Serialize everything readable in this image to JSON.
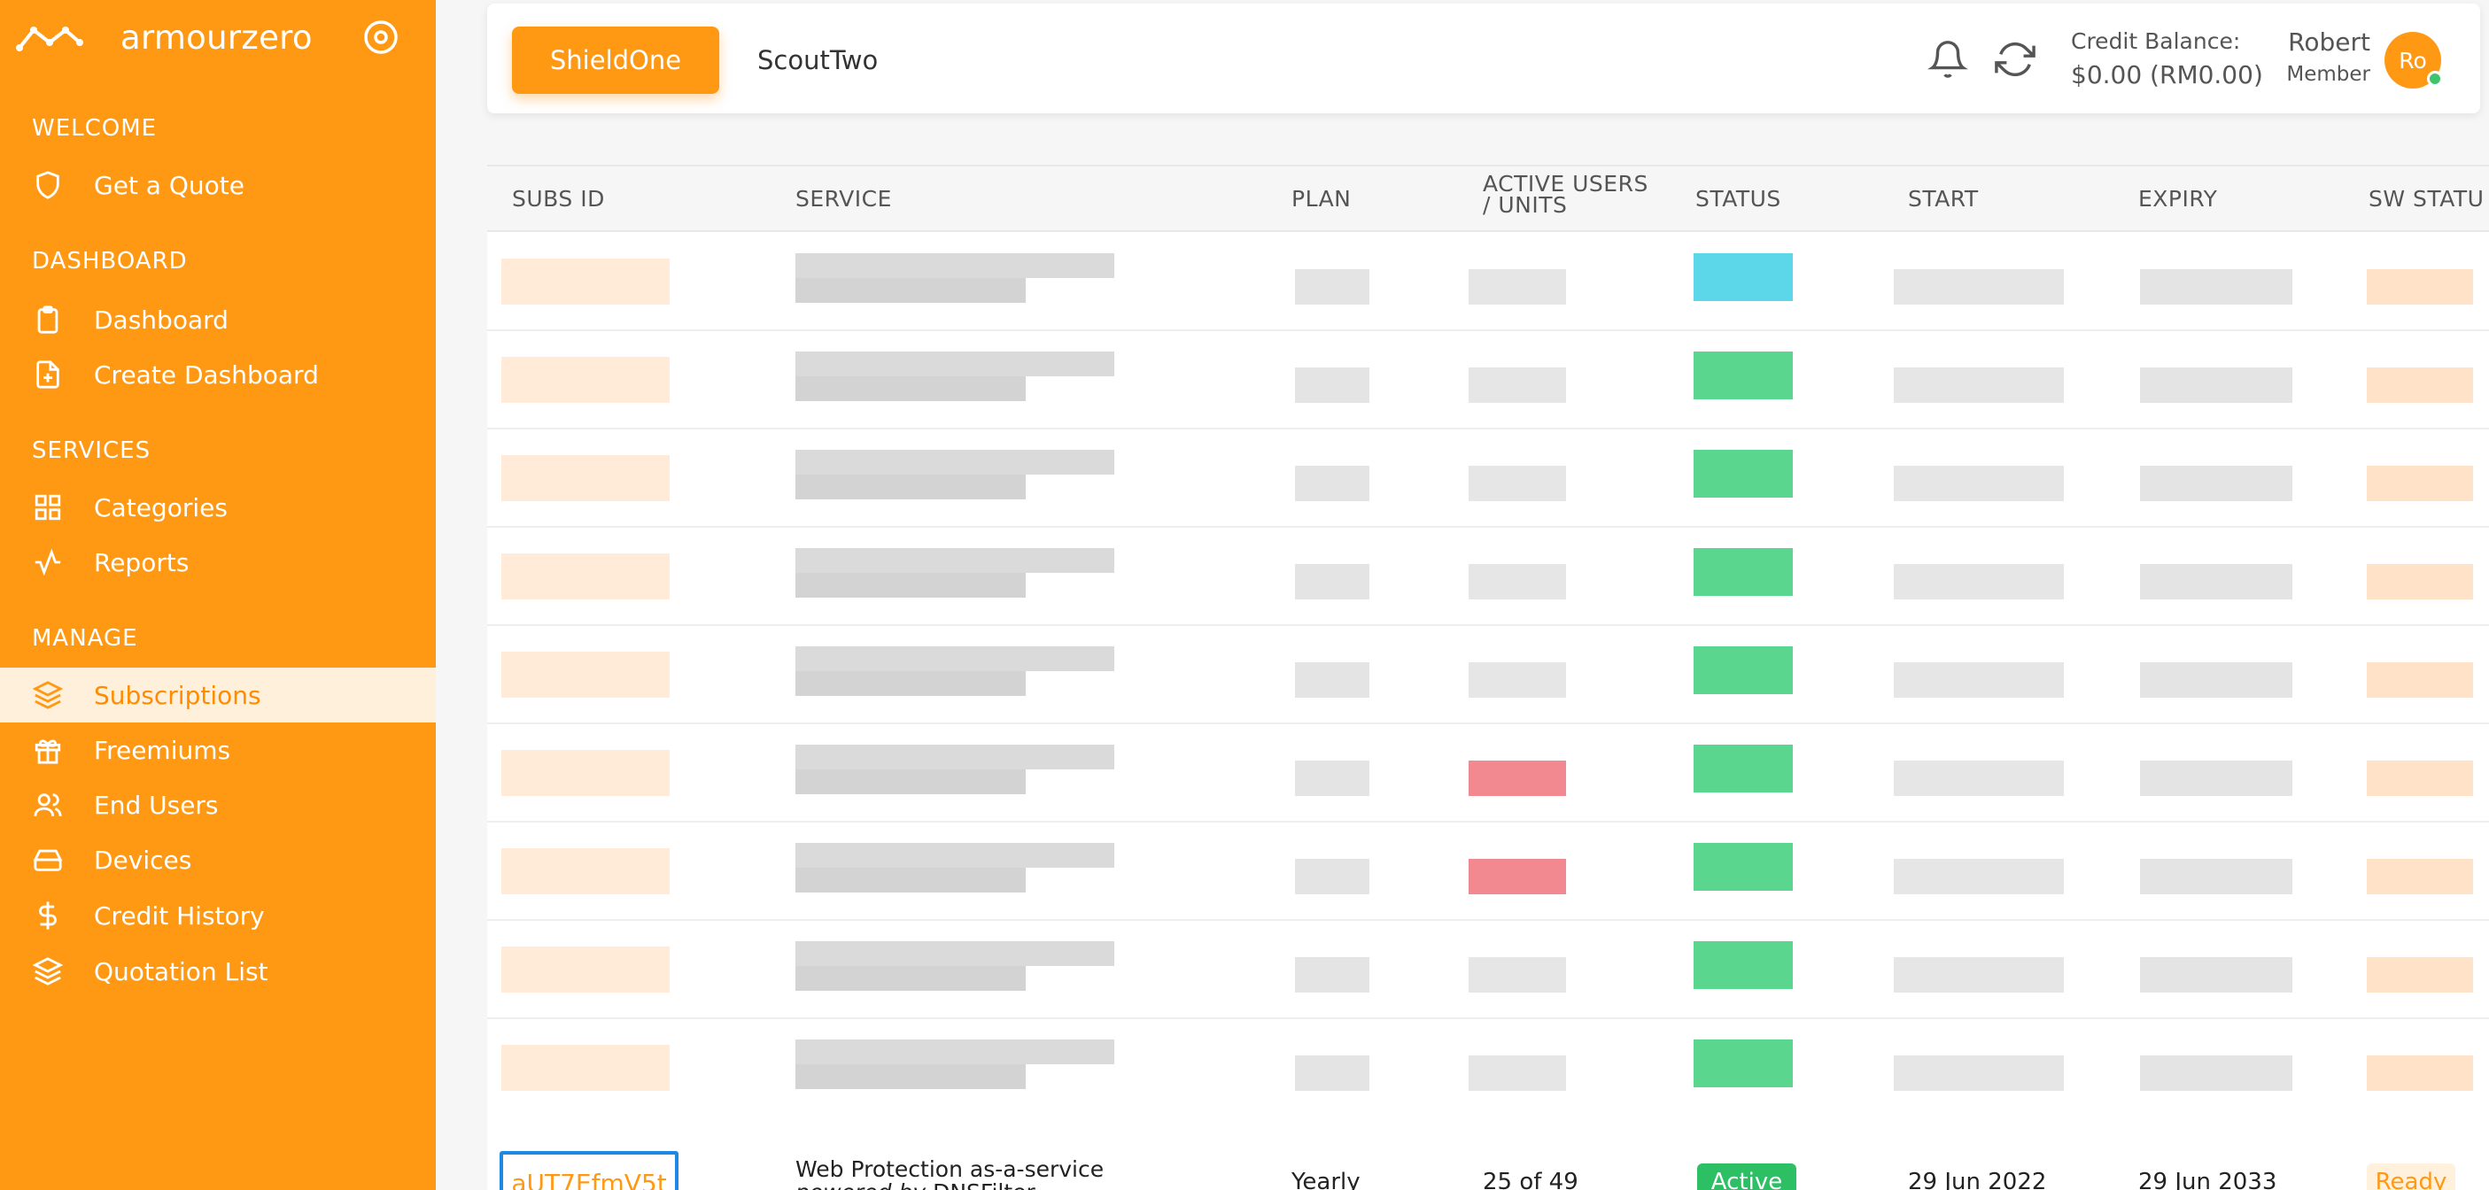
{
  "brand": {
    "name": "armourzero"
  },
  "sidebar": {
    "sections": [
      {
        "title": "WELCOME",
        "items": [
          {
            "label": "Get a Quote",
            "icon": "shield-icon"
          }
        ]
      },
      {
        "title": "DASHBOARD",
        "items": [
          {
            "label": "Dashboard",
            "icon": "clipboard-icon"
          },
          {
            "label": "Create Dashboard",
            "icon": "file-plus-icon"
          }
        ]
      },
      {
        "title": "SERVICES",
        "items": [
          {
            "label": "Categories",
            "icon": "grid-icon"
          },
          {
            "label": "Reports",
            "icon": "activity-icon"
          }
        ]
      },
      {
        "title": "MANAGE",
        "items": [
          {
            "label": "Subscriptions",
            "icon": "layers-icon",
            "active": true
          },
          {
            "label": "Freemiums",
            "icon": "gift-icon"
          },
          {
            "label": "End Users",
            "icon": "users-icon"
          },
          {
            "label": "Devices",
            "icon": "hard-drive-icon"
          },
          {
            "label": "Credit History",
            "icon": "dollar-icon"
          },
          {
            "label": "Quotation List",
            "icon": "layers-icon"
          }
        ]
      }
    ]
  },
  "header": {
    "tabs": [
      {
        "label": "ShieldOne",
        "active": true
      },
      {
        "label": "ScoutTwo",
        "active": false
      }
    ],
    "credit_label": "Credit Balance:",
    "credit_amount": "$0.00 (RM0.00)",
    "user_name": "Robert",
    "user_role": "Member",
    "avatar_initials": "Ro"
  },
  "table": {
    "columns": [
      "SUBS ID",
      "SERVICE",
      "PLAN",
      "ACTIVE USERS / UNITS",
      "STATUS",
      "START",
      "EXPIRY",
      "SW STATU"
    ],
    "last_row": {
      "subs_id": "aUT7EfmV5t",
      "service_line1": "Web Protection as-a-service",
      "service_powered": "powered by",
      "service_vendor": "DNSFilter",
      "plan": "Yearly",
      "units": "25 of 49",
      "status": "Active",
      "start": "29 Jun 2022",
      "expiry": "29 Jun 2033",
      "sw_status": "Ready"
    }
  },
  "colors": {
    "accent": "#ff9914",
    "active_green": "#2dbf64",
    "link_focus": "#1e88e5"
  }
}
